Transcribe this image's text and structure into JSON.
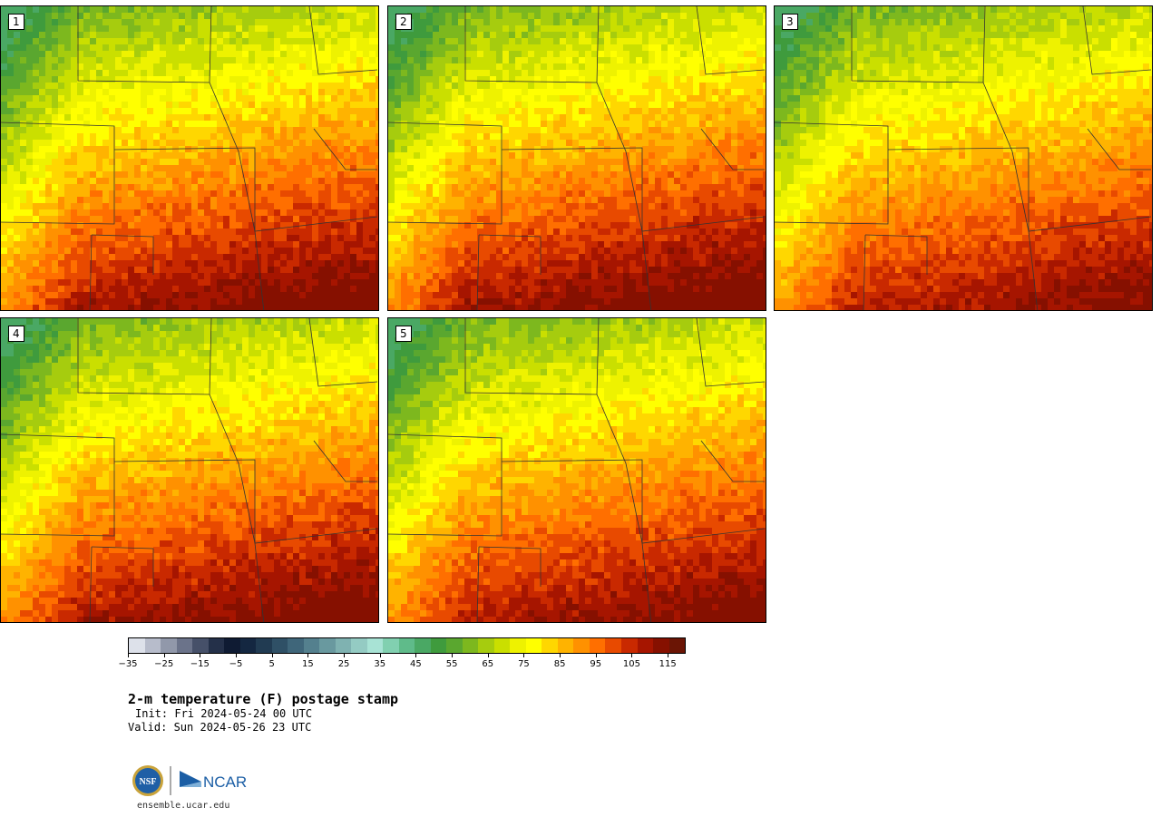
{
  "panels": [
    {
      "id": "1",
      "hot": 1.0
    },
    {
      "id": "2",
      "hot": 1.1
    },
    {
      "id": "3",
      "hot": 0.8
    },
    {
      "id": "4",
      "hot": 1.0
    },
    {
      "id": "5",
      "hot": 0.9
    }
  ],
  "colorbar": {
    "colors": [
      "#dde1ea",
      "#b7bccb",
      "#9198aa",
      "#6b738a",
      "#465069",
      "#243049",
      "#0f1b33",
      "#142741",
      "#213b52",
      "#2f5066",
      "#3f667a",
      "#54808e",
      "#69999f",
      "#7fb2b1",
      "#94cbc3",
      "#a8e3d5",
      "#81d0b0",
      "#5fbb8a",
      "#4aa864",
      "#3f9b3d",
      "#5aa72f",
      "#7db81e",
      "#a6cc0e",
      "#cadf00",
      "#eef200",
      "#ffff00",
      "#ffd700",
      "#ffb300",
      "#ff9100",
      "#ff6f00",
      "#e84a00",
      "#c92900",
      "#a61500",
      "#861000",
      "#6b1505"
    ],
    "tick_labels": [
      "−35",
      "−25",
      "−15",
      "−5",
      "5",
      "15",
      "25",
      "35",
      "45",
      "55",
      "65",
      "75",
      "85",
      "95",
      "105",
      "115"
    ],
    "tick_values": [
      -35,
      -25,
      -15,
      -5,
      5,
      15,
      25,
      35,
      45,
      55,
      65,
      75,
      85,
      95,
      105,
      115
    ],
    "range": [
      -35,
      120
    ]
  },
  "title": "2-m temperature (F) postage stamp",
  "init": "Init: Fri 2024-05-24 00 UTC",
  "valid": "Valid: Sun 2024-05-26 23 UTC",
  "logo": {
    "left": "NSF",
    "right": "NCAR"
  },
  "site": "ensemble.ucar.edu"
}
